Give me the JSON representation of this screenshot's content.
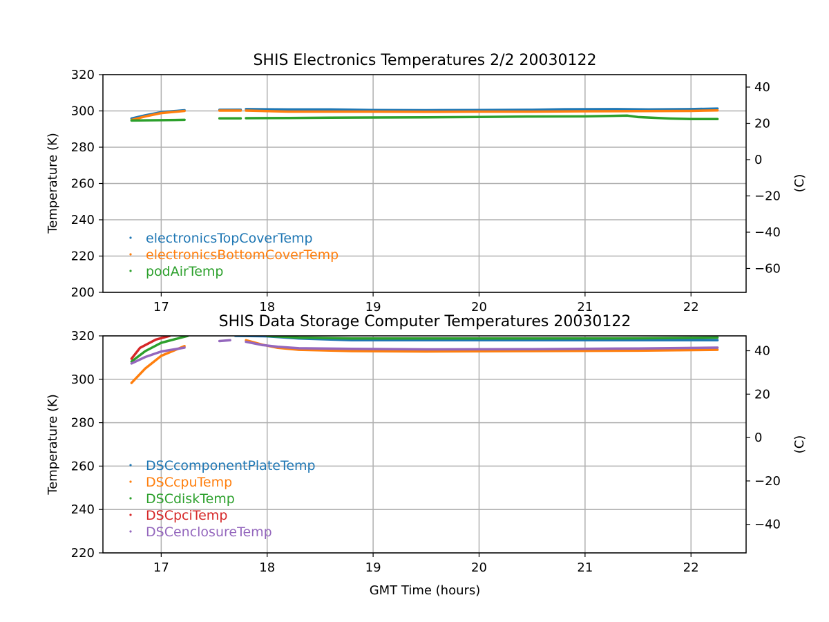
{
  "chart_data": [
    {
      "type": "scatter",
      "title": "SHIS Electronics Temperatures 2/2 20030122",
      "xlabel": "",
      "ylabel": "Temperature (K)",
      "y2label": "(C)",
      "xlim": [
        16.45,
        22.52
      ],
      "ylim": [
        200,
        320
      ],
      "xticks": [
        17,
        18,
        19,
        20,
        21,
        22
      ],
      "yticks": [
        200,
        220,
        240,
        260,
        280,
        300,
        320
      ],
      "y2ticks": [
        40,
        20,
        0,
        -20,
        -40,
        -60
      ],
      "grid": true,
      "legend": "lower-left",
      "series": [
        {
          "name": "electronicsTopCoverTemp",
          "color": "#1f77b4",
          "points": [
            [
              16.72,
              295.8
            ],
            [
              16.85,
              297.6
            ],
            [
              17.0,
              299.3
            ],
            [
              17.22,
              300.4
            ],
            null,
            [
              17.55,
              300.6
            ],
            [
              17.75,
              300.7
            ],
            null,
            [
              17.8,
              301.0
            ],
            [
              18.2,
              300.8
            ],
            [
              18.6,
              300.8
            ],
            [
              19.0,
              300.5
            ],
            [
              19.5,
              300.4
            ],
            [
              20.0,
              300.5
            ],
            [
              20.5,
              300.6
            ],
            [
              20.8,
              300.9
            ],
            [
              21.3,
              301.0
            ],
            [
              21.6,
              300.8
            ],
            [
              22.0,
              301.0
            ],
            [
              22.25,
              301.3
            ]
          ]
        },
        {
          "name": "electronicsBottomCoverTemp",
          "color": "#ff7f0e",
          "points": [
            [
              16.72,
              295.0
            ],
            [
              16.85,
              297.0
            ],
            [
              17.0,
              298.8
            ],
            [
              17.22,
              300.0
            ],
            null,
            [
              17.55,
              300.2
            ],
            [
              17.75,
              300.2
            ],
            null,
            [
              17.8,
              300.2
            ],
            [
              18.2,
              299.6
            ],
            [
              18.6,
              299.6
            ],
            [
              19.0,
              299.6
            ],
            [
              19.5,
              299.5
            ],
            [
              20.0,
              299.6
            ],
            [
              20.5,
              299.6
            ],
            [
              21.0,
              299.8
            ],
            [
              21.5,
              299.9
            ],
            [
              22.0,
              300.0
            ],
            [
              22.25,
              300.3
            ]
          ]
        },
        {
          "name": "podAirTemp",
          "color": "#2ca02c",
          "points": [
            [
              16.72,
              294.7
            ],
            [
              16.85,
              294.8
            ],
            [
              17.0,
              294.9
            ],
            [
              17.22,
              295.1
            ],
            null,
            [
              17.55,
              295.9
            ],
            [
              17.75,
              295.9
            ],
            null,
            [
              17.8,
              296.0
            ],
            [
              18.2,
              296.1
            ],
            [
              18.6,
              296.3
            ],
            [
              19.0,
              296.4
            ],
            [
              19.5,
              296.5
            ],
            [
              20.0,
              296.7
            ],
            [
              20.5,
              296.9
            ],
            [
              21.0,
              297.0
            ],
            [
              21.4,
              297.4
            ],
            [
              21.5,
              296.6
            ],
            [
              21.8,
              295.8
            ],
            [
              22.0,
              295.5
            ],
            [
              22.25,
              295.5
            ]
          ]
        }
      ]
    },
    {
      "type": "scatter",
      "title": "SHIS Data Storage Computer Temperatures 20030122",
      "xlabel": "GMT Time (hours)",
      "ylabel": "Temperature (K)",
      "y2label": "(C)",
      "xlim": [
        16.45,
        22.52
      ],
      "ylim": [
        220,
        320
      ],
      "xticks": [
        17,
        18,
        19,
        20,
        21,
        22
      ],
      "yticks": [
        220,
        240,
        260,
        280,
        300,
        320
      ],
      "y2ticks": [
        40,
        20,
        0,
        -20,
        -40
      ],
      "grid": true,
      "legend": "lower-left",
      "series": [
        {
          "name": "DSCcomponentPlateTemp",
          "color": "#1f77b4",
          "points": [
            [
              17.7,
              320
            ],
            [
              18.0,
              319.8
            ],
            [
              18.3,
              318.8
            ],
            [
              18.8,
              318.0
            ],
            [
              19.5,
              318.0
            ],
            [
              20.5,
              318.0
            ],
            [
              21.5,
              318.0
            ],
            [
              22.25,
              318.0
            ]
          ]
        },
        {
          "name": "DSCcpuTemp",
          "color": "#ff7f0e",
          "points": [
            [
              16.72,
              298.3
            ],
            [
              16.85,
              305.0
            ],
            [
              17.0,
              310.8
            ],
            [
              17.22,
              315.3
            ],
            null,
            [
              17.8,
              318.0
            ],
            [
              17.95,
              316.0
            ],
            [
              18.1,
              314.5
            ],
            [
              18.3,
              313.6
            ],
            [
              18.8,
              313.0
            ],
            [
              19.5,
              312.8
            ],
            [
              20.5,
              313.0
            ],
            [
              21.5,
              313.2
            ],
            [
              22.25,
              313.6
            ]
          ]
        },
        {
          "name": "DSCdiskTemp",
          "color": "#2ca02c",
          "points": [
            [
              16.72,
              308.2
            ],
            [
              16.85,
              313.0
            ],
            [
              17.0,
              316.8
            ],
            [
              17.25,
              320
            ],
            null,
            [
              18.0,
              320
            ],
            [
              18.3,
              319.2
            ],
            [
              18.8,
              318.8
            ],
            [
              19.5,
              318.8
            ],
            [
              20.5,
              318.8
            ],
            [
              21.5,
              318.9
            ],
            [
              22.25,
              319.2
            ]
          ]
        },
        {
          "name": "DSCpciTemp",
          "color": "#d62728",
          "points": [
            [
              16.72,
              309.5
            ],
            [
              16.8,
              314.5
            ],
            [
              16.95,
              318.3
            ],
            [
              17.08,
              320
            ]
          ]
        },
        {
          "name": "DSCenclosureTemp",
          "color": "#9467bd",
          "points": [
            [
              16.72,
              307.3
            ],
            [
              16.85,
              310.3
            ],
            [
              17.0,
              312.8
            ],
            [
              17.22,
              314.6
            ],
            null,
            [
              17.55,
              317.6
            ],
            [
              17.65,
              318.0
            ],
            null,
            [
              17.8,
              317.3
            ],
            [
              17.95,
              315.8
            ],
            [
              18.1,
              315.0
            ],
            [
              18.3,
              314.3
            ],
            [
              18.8,
              314.0
            ],
            [
              19.5,
              313.8
            ],
            [
              20.5,
              313.9
            ],
            [
              21.5,
              314.2
            ],
            [
              22.25,
              314.6
            ]
          ]
        }
      ]
    }
  ]
}
